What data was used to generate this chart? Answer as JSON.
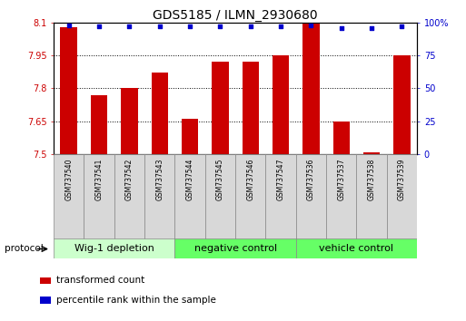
{
  "title": "GDS5185 / ILMN_2930680",
  "samples": [
    "GSM737540",
    "GSM737541",
    "GSM737542",
    "GSM737543",
    "GSM737544",
    "GSM737545",
    "GSM737546",
    "GSM737547",
    "GSM737536",
    "GSM737537",
    "GSM737538",
    "GSM737539"
  ],
  "bar_values": [
    8.08,
    7.77,
    7.8,
    7.87,
    7.66,
    7.92,
    7.92,
    7.95,
    8.1,
    7.65,
    7.51,
    7.95
  ],
  "percentile_values": [
    98,
    97,
    97,
    97,
    97,
    97,
    97,
    97,
    98,
    96,
    96,
    97
  ],
  "ylim_left": [
    7.5,
    8.1
  ],
  "ylim_right": [
    0,
    100
  ],
  "yticks_left": [
    7.5,
    7.65,
    7.8,
    7.95,
    8.1
  ],
  "ytick_labels_left": [
    "7.5",
    "7.65",
    "7.8",
    "7.95",
    "8.1"
  ],
  "yticks_right": [
    0,
    25,
    50,
    75,
    100
  ],
  "ytick_labels_right": [
    "0",
    "25",
    "50",
    "75",
    "100%"
  ],
  "grid_values": [
    7.65,
    7.8,
    7.95
  ],
  "bar_color": "#cc0000",
  "percentile_color": "#0000cc",
  "bar_width": 0.55,
  "group_colors": [
    "#ccffcc",
    "#66ff66",
    "#66ff66"
  ],
  "group_ranges": [
    [
      0,
      3
    ],
    [
      4,
      7
    ],
    [
      8,
      11
    ]
  ],
  "group_labels": [
    "Wig-1 depletion",
    "negative control",
    "vehicle control"
  ],
  "protocol_label": "protocol",
  "legend_bar_label": "transformed count",
  "legend_pct_label": "percentile rank within the sample",
  "title_fontsize": 10,
  "tick_fontsize": 7,
  "sample_fontsize": 5.5,
  "group_fontsize": 8,
  "legend_fontsize": 7.5
}
